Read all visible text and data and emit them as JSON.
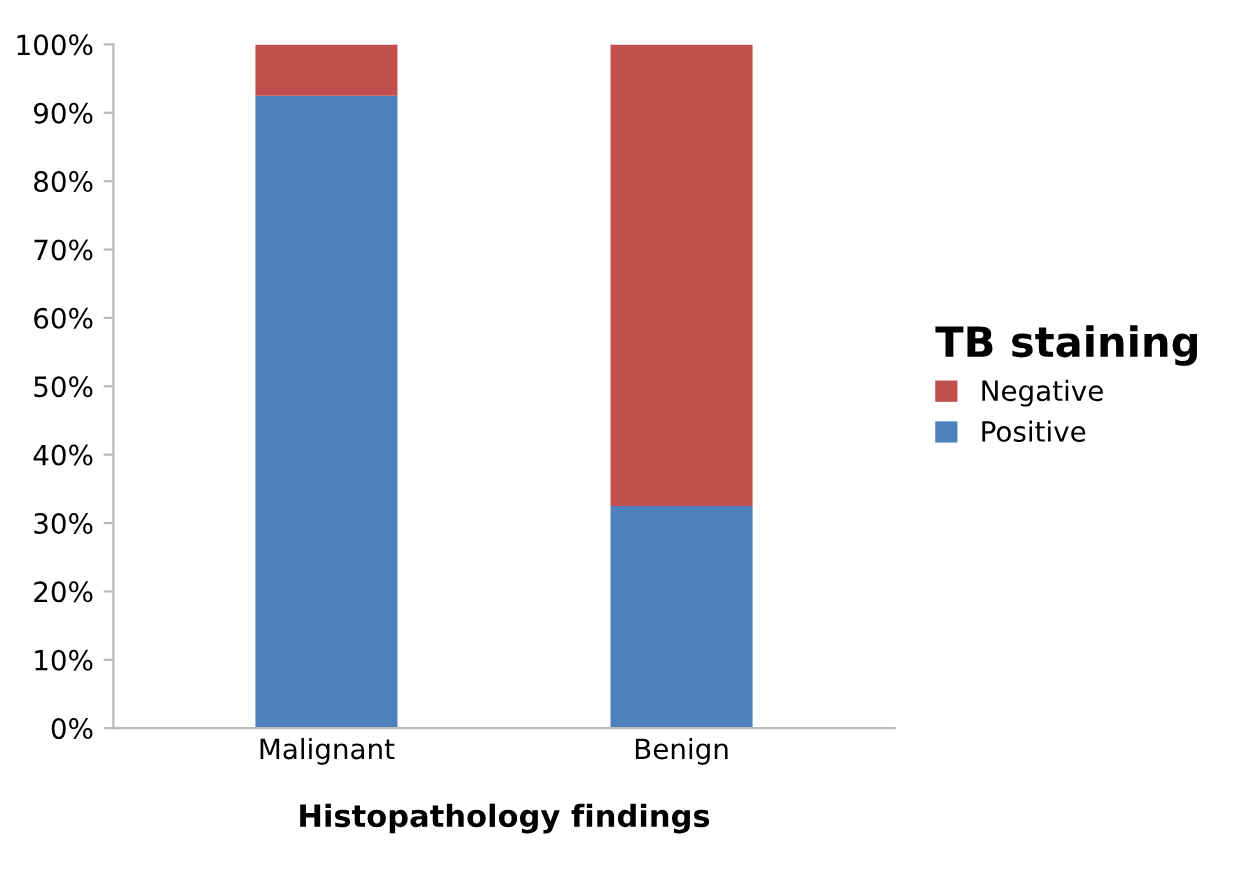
{
  "chart_data": {
    "type": "bar",
    "stacked": true,
    "xlabel": "Histopathology findings",
    "legend_title": "TB staining",
    "legend": "right",
    "categories": [
      "Malignant",
      "Benign"
    ],
    "series": [
      {
        "name": "Positive",
        "color": "#4f81bd",
        "values": [
          92.5,
          32.5
        ]
      },
      {
        "name": "Negative",
        "color": "#c0504d",
        "values": [
          7.5,
          67.5
        ]
      }
    ],
    "ylim": [
      0,
      100
    ],
    "yticks": [
      {
        "value": 0,
        "label": "0%"
      },
      {
        "value": 10,
        "label": "10%"
      },
      {
        "value": 20,
        "label": "20%"
      },
      {
        "value": 30,
        "label": "30%"
      },
      {
        "value": 40,
        "label": "40%"
      },
      {
        "value": 50,
        "label": "50%"
      },
      {
        "value": 60,
        "label": "60%"
      },
      {
        "value": 70,
        "label": "70%"
      },
      {
        "value": 80,
        "label": "80%"
      },
      {
        "value": 90,
        "label": "90%"
      },
      {
        "value": 100,
        "label": "100%"
      }
    ],
    "grid": false
  }
}
